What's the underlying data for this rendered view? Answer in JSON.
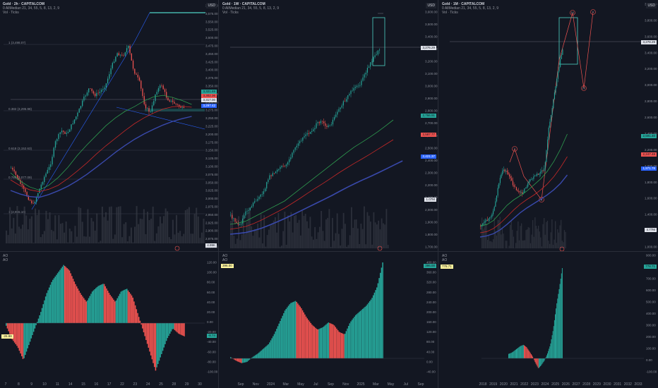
{
  "panes": [
    {
      "title": "Gold · 2h · CAPITALCOM",
      "indicator": "0 AllMedian 21, 34, 55, 5, 8, 13, 2, 9",
      "vol": "Vol · Ticks",
      "currency": "USD",
      "price_ticks": [
        "3,600.00",
        "3,575.00",
        "3,550.00",
        "3,525.00",
        "3,500.00",
        "3,475.00",
        "3,450.00",
        "3,425.00",
        "3,400.00",
        "3,375.00",
        "3,350.00",
        "3,325.00",
        "3,300.00",
        "3,275.00",
        "3,250.00",
        "3,225.00",
        "3,200.00",
        "3,175.00",
        "3,150.00",
        "3,125.00",
        "3,100.00",
        "3,075.00",
        "3,050.00",
        "3,025.00",
        "3,000.00",
        "2,975.00",
        "2,950.00",
        "2,925.00",
        "2,900.00",
        "2,875.00",
        "2,850.00"
      ],
      "ao_ticks": [
        "120.00",
        "100.00",
        "80.00",
        "60.00",
        "40.00",
        "20.00",
        "0.00",
        "-20.00",
        "-40.00",
        "-60.00",
        "-80.00",
        "-100.00"
      ],
      "time_ticks": [
        "7",
        "8",
        "9",
        "10",
        "11",
        "14",
        "15",
        "16",
        "17",
        "22",
        "23",
        "24",
        "25",
        "28",
        "29",
        "30"
      ],
      "fib_labels": [
        "1 (3,498.07)",
        "0.382 (3,295.98)",
        "0.618 (3,152.63)",
        "0.786 (3,077.09)",
        "1 (2,955.10)"
      ],
      "badges": [
        "3,321.69",
        "3,302.36",
        "3,301.06",
        "3,317.00",
        "3,297.42",
        "3,288.19"
      ],
      "ao_badge": "-8.74",
      "ao_badge2": "-26.88",
      "vol_badge": "4.99K"
    },
    {
      "title": "Gold · 1W · CAPITALCOM",
      "indicator": "0 AllMedian 21, 34, 55, 5, 8, 13, 2, 9",
      "vol": "Vol · Ticks",
      "currency": "USD",
      "price_ticks": [
        "3,600.00",
        "3,500.00",
        "3,400.00",
        "3,300.00",
        "3,200.00",
        "3,100.00",
        "3,000.00",
        "2,900.00",
        "2,800.00",
        "2,700.00",
        "2,600.00",
        "2,500.00",
        "2,400.00",
        "2,300.00",
        "2,200.00",
        "2,100.00",
        "2,000.00",
        "1,900.00",
        "1,800.00",
        "1,700.00"
      ],
      "ao_ticks": [
        "400.00",
        "360.00",
        "320.00",
        "280.00",
        "240.00",
        "200.00",
        "160.00",
        "120.00",
        "80.00",
        "40.00",
        "0.00",
        "-40.00"
      ],
      "time_ticks": [
        "Sep",
        "Nov",
        "2024",
        "Mar",
        "May",
        "Jul",
        "Sep",
        "Nov",
        "2025",
        "Mar",
        "May",
        "Jul",
        "Sep"
      ],
      "badges": [
        "3,276.29",
        "2,766.91",
        "2,587.77",
        "2,421.37"
      ],
      "ao_badge": "396.00",
      "vol_badge": "1.07M"
    },
    {
      "title": "Gold · 1M · CAPITALCOM",
      "indicator": "0 AllMedian 21, 34, 55, 5, 8, 13, 2, 9",
      "vol": "Vol · Ticks",
      "currency": "USD",
      "price_ticks": [
        "3,900.00",
        "3,800.00",
        "3,600.00",
        "3,400.00",
        "3,200.00",
        "3,000.00",
        "2,800.00",
        "2,600.00",
        "2,400.00",
        "2,200.00",
        "2,000.00",
        "1,800.00",
        "1,600.00",
        "1,400.00",
        "1,200.00",
        "1,000.00"
      ],
      "ao_ticks": [
        "900.00",
        "800.00",
        "700.00",
        "600.00",
        "500.00",
        "400.00",
        "300.00",
        "200.00",
        "100.00",
        "0.00",
        "-100.00"
      ],
      "time_ticks": [
        "2018",
        "2019",
        "2020",
        "2021",
        "2022",
        "2023",
        "2024",
        "2025",
        "2026",
        "2027",
        "2028",
        "2029",
        "2030",
        "2031",
        "2032",
        "2033"
      ],
      "badges": [
        "3,278.29",
        "2,591.40",
        "2,247.48",
        "1,971.78"
      ],
      "wave_labels": [
        "I",
        "II",
        "III",
        "IV",
        "V"
      ],
      "ao_badge": "778.71",
      "vol_badge": "4.77M"
    }
  ],
  "ao_label": "AO",
  "colors": {
    "green": "#26a69a",
    "red": "#ef5350",
    "bg": "#131722",
    "blue": "#2962ff",
    "ma_green": "#2e9c4f",
    "ma_red": "#c62828",
    "ma_blue": "#3949ab",
    "teal": "#4fd1c5"
  }
}
